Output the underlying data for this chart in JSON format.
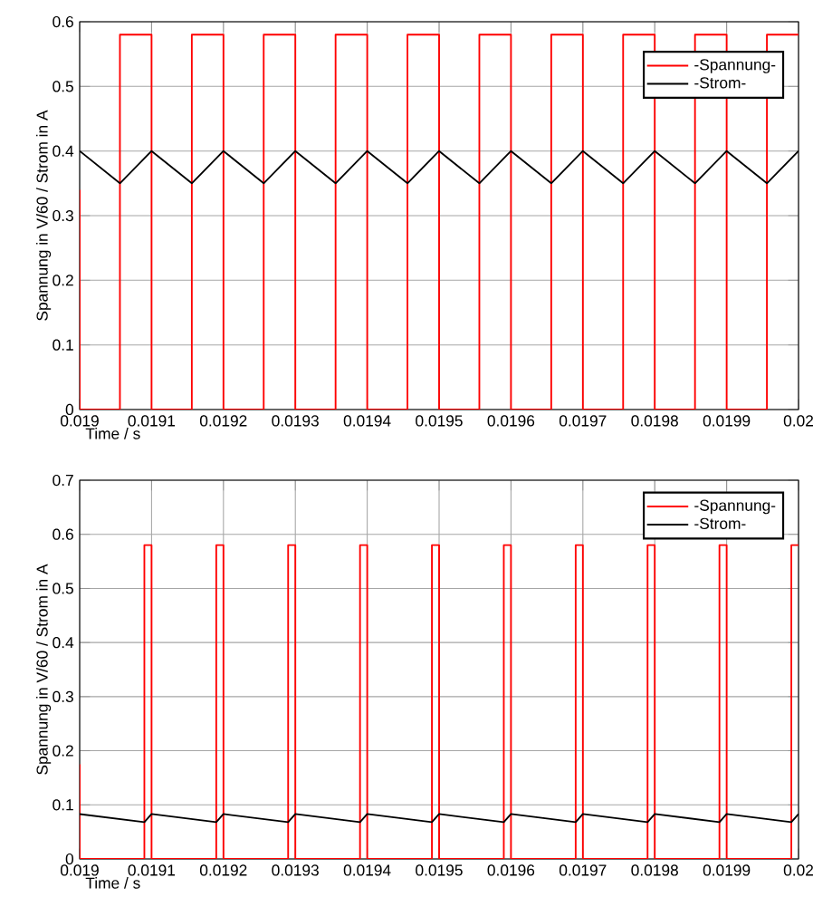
{
  "chart_data": [
    {
      "type": "line",
      "xlabel": "Time / s",
      "ylabel": "Spannung in V/60 / Strom in A",
      "xlim": [
        0.019,
        0.02
      ],
      "ylim": [
        0,
        0.6
      ],
      "xticks": [
        0.019,
        0.0191,
        0.0192,
        0.0193,
        0.0194,
        0.0195,
        0.0196,
        0.0197,
        0.0198,
        0.0199,
        0.02
      ],
      "yticks": [
        0,
        0.1,
        0.2,
        0.3,
        0.4,
        0.5,
        0.6
      ],
      "grid": true,
      "legend": "top right",
      "series": [
        {
          "name": "-Spannung-",
          "color": "#ff0000",
          "x": [
            0.019,
            0.019,
            0.019056,
            0.019056,
            0.0191,
            0.0191,
            0.019156,
            0.019156,
            0.0192,
            0.0192,
            0.019256,
            0.019256,
            0.0193,
            0.0193,
            0.019356,
            0.019356,
            0.0194,
            0.0194,
            0.019456,
            0.019456,
            0.0195,
            0.0195,
            0.019556,
            0.019556,
            0.0196,
            0.0196,
            0.019656,
            0.019656,
            0.0197,
            0.0197,
            0.019756,
            0.019756,
            0.0198,
            0.0198,
            0.019856,
            0.019856,
            0.0199,
            0.0199,
            0.019956,
            0.019956,
            0.02
          ],
          "values": [
            0.34,
            0,
            0,
            0.58,
            0.58,
            0,
            0,
            0.58,
            0.58,
            0,
            0,
            0.58,
            0.58,
            0,
            0,
            0.58,
            0.58,
            0,
            0,
            0.58,
            0.58,
            0,
            0,
            0.58,
            0.58,
            0,
            0,
            0.58,
            0.58,
            0,
            0,
            0.58,
            0.58,
            0,
            0,
            0.58,
            0.58,
            0,
            0,
            0.58,
            0.58
          ]
        },
        {
          "name": "-Strom-",
          "color": "#000000",
          "x": [
            0.019,
            0.019056,
            0.0191,
            0.019156,
            0.0192,
            0.019256,
            0.0193,
            0.019356,
            0.0194,
            0.019456,
            0.0195,
            0.019556,
            0.0196,
            0.019656,
            0.0197,
            0.019756,
            0.0198,
            0.019856,
            0.0199,
            0.019956,
            0.02
          ],
          "values": [
            0.4,
            0.35,
            0.4,
            0.35,
            0.4,
            0.35,
            0.4,
            0.35,
            0.4,
            0.35,
            0.4,
            0.35,
            0.4,
            0.35,
            0.4,
            0.35,
            0.4,
            0.35,
            0.4,
            0.35,
            0.4
          ]
        }
      ]
    },
    {
      "type": "line",
      "xlabel": "Time / s",
      "ylabel": "Spannung in V/60 / Strom in A",
      "xlim": [
        0.019,
        0.02
      ],
      "ylim": [
        0,
        0.7
      ],
      "xticks": [
        0.019,
        0.0191,
        0.0192,
        0.0193,
        0.0194,
        0.0195,
        0.0196,
        0.0197,
        0.0198,
        0.0199,
        0.02
      ],
      "yticks": [
        0,
        0.1,
        0.2,
        0.3,
        0.4,
        0.5,
        0.6,
        0.7
      ],
      "grid": true,
      "legend": "top right",
      "series": [
        {
          "name": "-Spannung-",
          "color": "#ff0000",
          "x": [
            0.019,
            0.019,
            0.01909,
            0.01909,
            0.0191,
            0.0191,
            0.01919,
            0.01919,
            0.0192,
            0.0192,
            0.01929,
            0.01929,
            0.0193,
            0.0193,
            0.01939,
            0.01939,
            0.0194,
            0.0194,
            0.01949,
            0.01949,
            0.0195,
            0.0195,
            0.01959,
            0.01959,
            0.0196,
            0.0196,
            0.01969,
            0.01969,
            0.0197,
            0.0197,
            0.01979,
            0.01979,
            0.0198,
            0.0198,
            0.01989,
            0.01989,
            0.0199,
            0.0199,
            0.01999,
            0.01999,
            0.02
          ],
          "values": [
            0.175,
            0,
            0,
            0.58,
            0.58,
            0,
            0,
            0.58,
            0.58,
            0,
            0,
            0.58,
            0.58,
            0,
            0,
            0.58,
            0.58,
            0,
            0,
            0.58,
            0.58,
            0,
            0,
            0.58,
            0.58,
            0,
            0,
            0.58,
            0.58,
            0,
            0,
            0.58,
            0.58,
            0,
            0,
            0.58,
            0.58,
            0,
            0,
            0.58,
            0.58
          ]
        },
        {
          "name": "-Strom-",
          "color": "#000000",
          "x": [
            0.019,
            0.01909,
            0.0191,
            0.01919,
            0.0192,
            0.01929,
            0.0193,
            0.01939,
            0.0194,
            0.01949,
            0.0195,
            0.01959,
            0.0196,
            0.01969,
            0.0197,
            0.01979,
            0.0198,
            0.01989,
            0.0199,
            0.01999,
            0.02
          ],
          "values": [
            0.083,
            0.068,
            0.083,
            0.068,
            0.083,
            0.068,
            0.083,
            0.068,
            0.083,
            0.068,
            0.083,
            0.068,
            0.083,
            0.068,
            0.083,
            0.068,
            0.083,
            0.068,
            0.083,
            0.068,
            0.083
          ]
        }
      ]
    }
  ]
}
